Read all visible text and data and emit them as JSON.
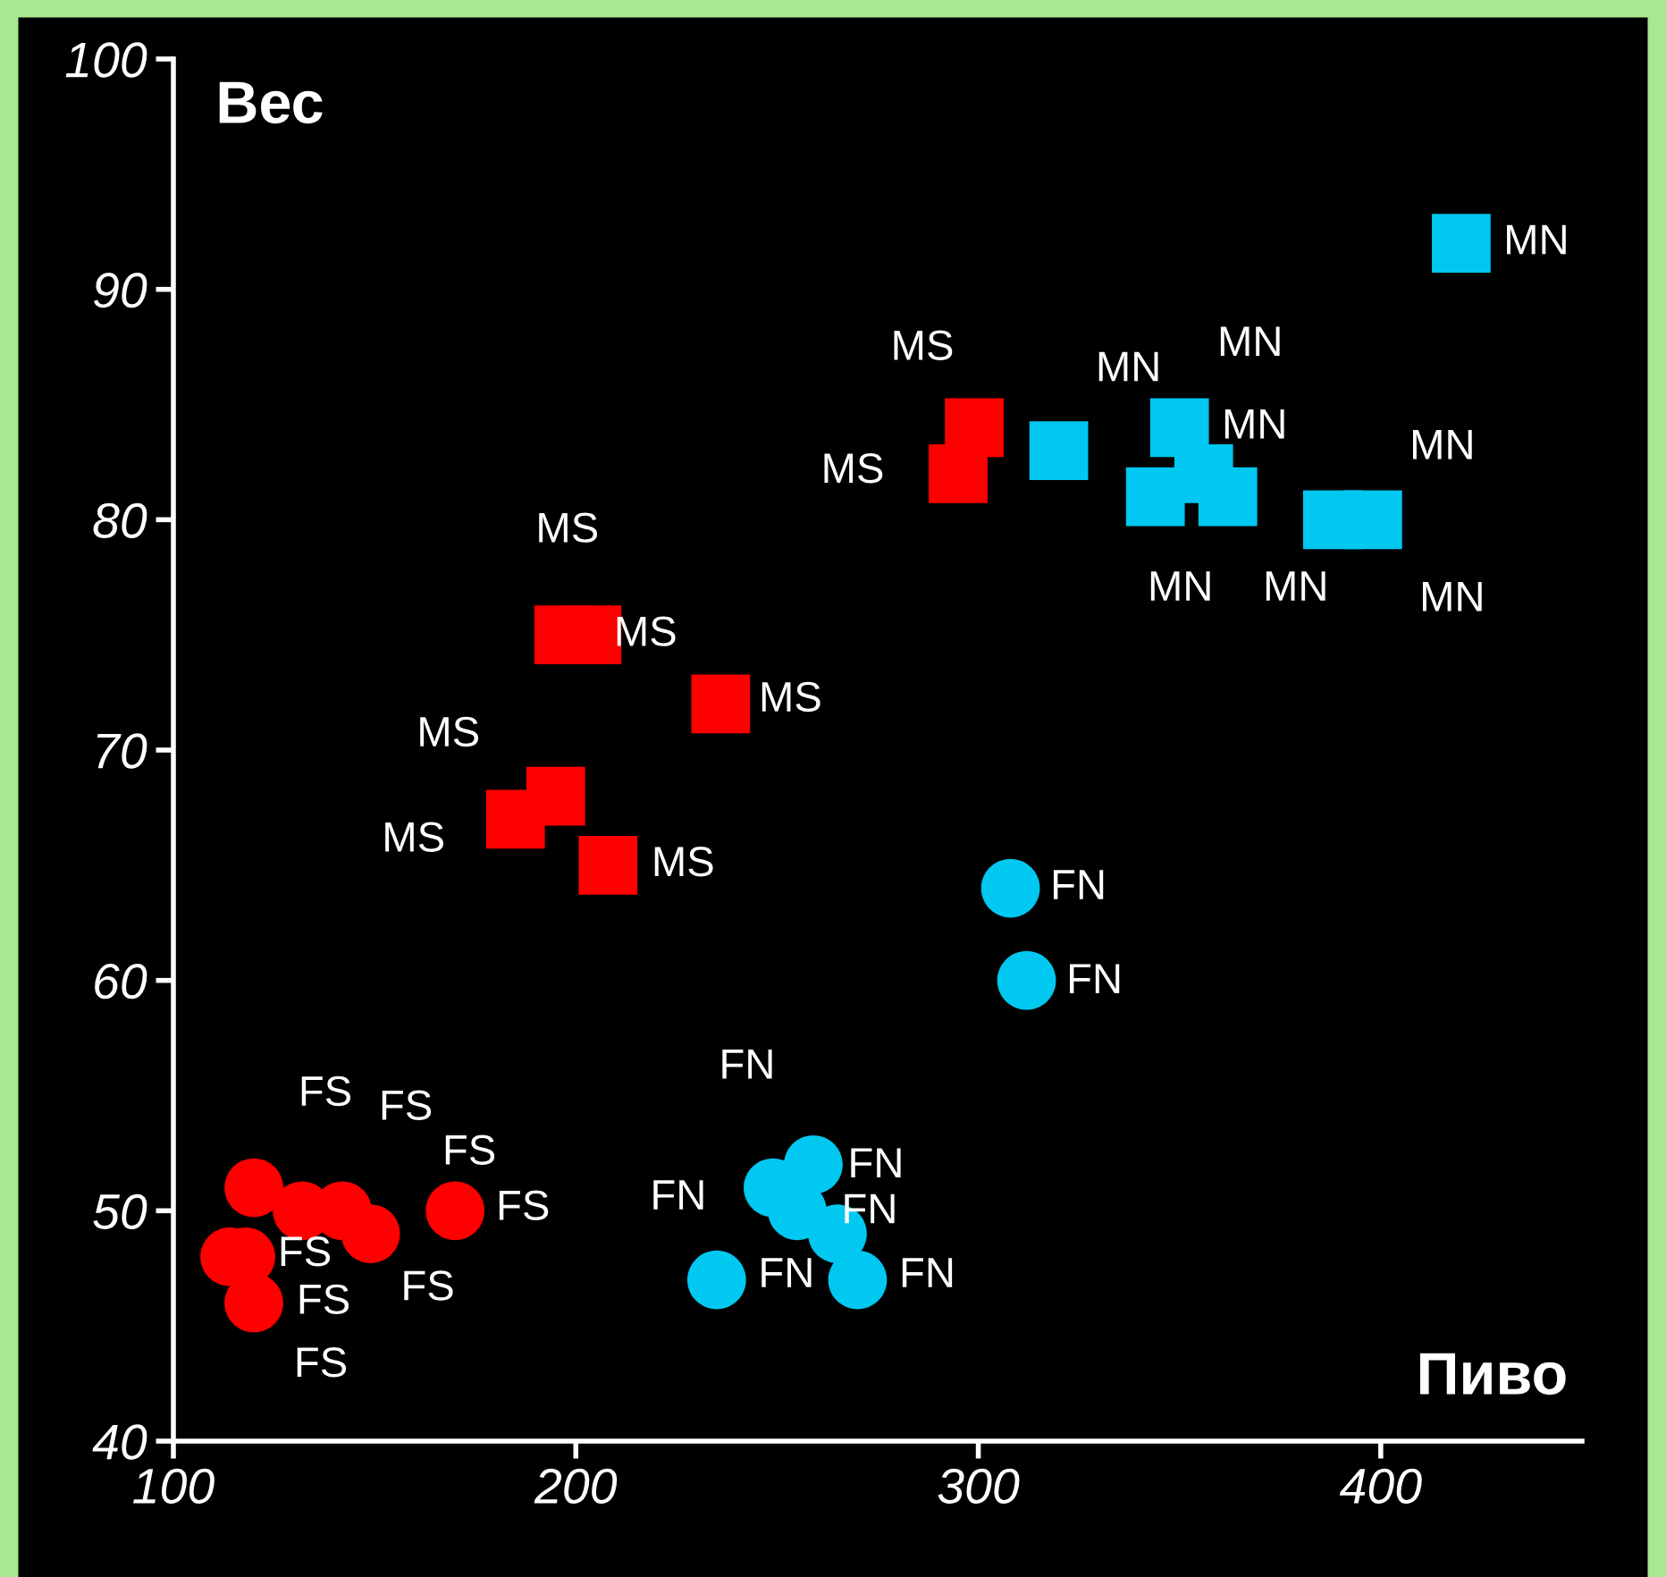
{
  "chart_data": {
    "type": "scatter",
    "xlabel": "Пиво",
    "ylabel": "Вес",
    "xlim": [
      100,
      450
    ],
    "ylim": [
      40,
      100
    ],
    "xticks": [
      100,
      200,
      300,
      400
    ],
    "yticks": [
      40,
      50,
      60,
      70,
      80,
      90,
      100
    ],
    "grid": false,
    "legend": false,
    "series": [
      {
        "color": "#ff0000",
        "marker": "circle",
        "x": [
          120,
          132,
          142,
          149,
          170,
          114,
          118,
          120
        ],
        "values": [
          51,
          50,
          50,
          49,
          50,
          48,
          48,
          46
        ],
        "value_labels": [
          "FS",
          "FS",
          "FS",
          "FS",
          "FS",
          "FS",
          "FS",
          "FS"
        ]
      },
      {
        "color": "#00c8f0",
        "marker": "circle",
        "x": [
          235,
          270,
          259,
          249,
          255,
          265,
          308,
          312
        ],
        "values": [
          47,
          47,
          52,
          51,
          50,
          49,
          64,
          60
        ],
        "value_labels": [
          "FN",
          "FN",
          "FN",
          "FN",
          "FN",
          "FN",
          "FN",
          "FN"
        ]
      },
      {
        "color": "#ff0000",
        "marker": "square",
        "x": [
          197,
          204,
          236,
          195,
          185,
          208,
          299,
          295
        ],
        "values": [
          75,
          75,
          72,
          68,
          67,
          65,
          84,
          82
        ],
        "value_labels": [
          "MS",
          "MS",
          "MS",
          "MS",
          "MS",
          "MS",
          "MS",
          "MS"
        ]
      },
      {
        "color": "#00c8f0",
        "marker": "square",
        "x": [
          420,
          320,
          350,
          356,
          344,
          362,
          388,
          398
        ],
        "values": [
          92,
          83,
          84,
          82,
          81,
          81,
          80,
          80
        ],
        "value_labels": [
          "MN",
          "MN",
          "MN",
          "MN",
          "MN",
          "MN",
          "MN",
          "MN"
        ]
      }
    ]
  }
}
